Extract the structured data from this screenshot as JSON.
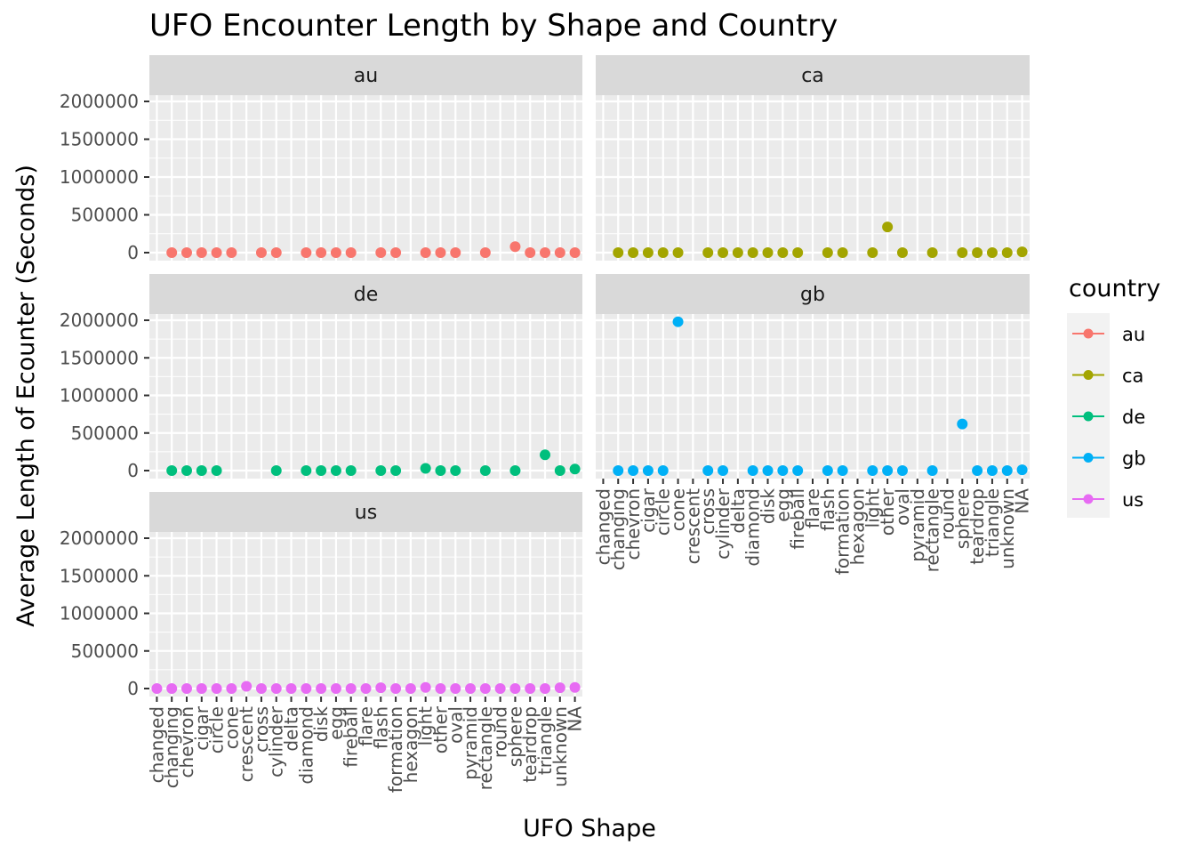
{
  "chart_data": {
    "type": "scatter",
    "title": "UFO Encounter Length by Shape and Country",
    "xlabel": "UFO Shape",
    "ylabel": "Average Length of Ecounter (Seconds)",
    "grid": true,
    "legend_position": "right",
    "legend_title": "country",
    "facet_by": "country",
    "facets": [
      "au",
      "ca",
      "de",
      "gb",
      "us"
    ],
    "categories": [
      "changed",
      "changing",
      "chevron",
      "cigar",
      "circle",
      "cone",
      "crescent",
      "cross",
      "cylinder",
      "delta",
      "diamond",
      "disk",
      "egg",
      "fireball",
      "flare",
      "flash",
      "formation",
      "hexagon",
      "light",
      "other",
      "oval",
      "pyramid",
      "rectangle",
      "round",
      "sphere",
      "teardrop",
      "triangle",
      "unknown",
      "NA"
    ],
    "ylim": [
      0,
      2000000
    ],
    "y_ticks": [
      0,
      500000,
      1000000,
      1500000,
      2000000
    ],
    "y_tick_labels": [
      "0",
      "500000",
      "1000000",
      "1500000",
      "2000000"
    ],
    "series": [
      {
        "name": "au",
        "color": "#F8766D",
        "points": [
          [
            "changing",
            0
          ],
          [
            "chevron",
            0
          ],
          [
            "cigar",
            0
          ],
          [
            "circle",
            0
          ],
          [
            "cone",
            0
          ],
          [
            "cross",
            0
          ],
          [
            "cylinder",
            0
          ],
          [
            "diamond",
            0
          ],
          [
            "disk",
            0
          ],
          [
            "egg",
            0
          ],
          [
            "fireball",
            0
          ],
          [
            "flash",
            0
          ],
          [
            "formation",
            0
          ],
          [
            "light",
            0
          ],
          [
            "other",
            0
          ],
          [
            "oval",
            0
          ],
          [
            "rectangle",
            0
          ],
          [
            "sphere",
            80000
          ],
          [
            "teardrop",
            0
          ],
          [
            "triangle",
            0
          ],
          [
            "unknown",
            0
          ],
          [
            "NA",
            0
          ]
        ]
      },
      {
        "name": "ca",
        "color": "#A3A500",
        "points": [
          [
            "changing",
            0
          ],
          [
            "chevron",
            0
          ],
          [
            "cigar",
            0
          ],
          [
            "circle",
            0
          ],
          [
            "cone",
            0
          ],
          [
            "cross",
            0
          ],
          [
            "cylinder",
            0
          ],
          [
            "delta",
            0
          ],
          [
            "diamond",
            0
          ],
          [
            "disk",
            0
          ],
          [
            "egg",
            0
          ],
          [
            "fireball",
            0
          ],
          [
            "flash",
            0
          ],
          [
            "formation",
            0
          ],
          [
            "light",
            0
          ],
          [
            "other",
            340000
          ],
          [
            "oval",
            0
          ],
          [
            "rectangle",
            0
          ],
          [
            "sphere",
            0
          ],
          [
            "teardrop",
            0
          ],
          [
            "triangle",
            0
          ],
          [
            "unknown",
            0
          ],
          [
            "NA",
            10000
          ]
        ]
      },
      {
        "name": "de",
        "color": "#00BF7D",
        "points": [
          [
            "changing",
            0
          ],
          [
            "chevron",
            0
          ],
          [
            "cigar",
            0
          ],
          [
            "circle",
            0
          ],
          [
            "cylinder",
            0
          ],
          [
            "diamond",
            0
          ],
          [
            "disk",
            0
          ],
          [
            "egg",
            0
          ],
          [
            "fireball",
            0
          ],
          [
            "flash",
            0
          ],
          [
            "formation",
            0
          ],
          [
            "light",
            30000
          ],
          [
            "other",
            0
          ],
          [
            "oval",
            0
          ],
          [
            "rectangle",
            0
          ],
          [
            "sphere",
            0
          ],
          [
            "triangle",
            210000
          ],
          [
            "unknown",
            0
          ],
          [
            "NA",
            20000
          ]
        ]
      },
      {
        "name": "gb",
        "color": "#00B0F6",
        "points": [
          [
            "changing",
            0
          ],
          [
            "chevron",
            0
          ],
          [
            "cigar",
            0
          ],
          [
            "circle",
            0
          ],
          [
            "cone",
            1980000
          ],
          [
            "cross",
            0
          ],
          [
            "cylinder",
            0
          ],
          [
            "diamond",
            0
          ],
          [
            "disk",
            0
          ],
          [
            "egg",
            0
          ],
          [
            "fireball",
            0
          ],
          [
            "flash",
            0
          ],
          [
            "formation",
            0
          ],
          [
            "light",
            0
          ],
          [
            "other",
            0
          ],
          [
            "oval",
            0
          ],
          [
            "rectangle",
            0
          ],
          [
            "sphere",
            620000
          ],
          [
            "teardrop",
            0
          ],
          [
            "triangle",
            0
          ],
          [
            "unknown",
            0
          ],
          [
            "NA",
            10000
          ]
        ]
      },
      {
        "name": "us",
        "color": "#E76BF3",
        "points": [
          [
            "changed",
            0
          ],
          [
            "changing",
            0
          ],
          [
            "chevron",
            0
          ],
          [
            "cigar",
            0
          ],
          [
            "circle",
            0
          ],
          [
            "cone",
            0
          ],
          [
            "crescent",
            30000
          ],
          [
            "cross",
            0
          ],
          [
            "cylinder",
            0
          ],
          [
            "delta",
            0
          ],
          [
            "diamond",
            0
          ],
          [
            "disk",
            0
          ],
          [
            "egg",
            0
          ],
          [
            "fireball",
            0
          ],
          [
            "flare",
            0
          ],
          [
            "flash",
            10000
          ],
          [
            "formation",
            0
          ],
          [
            "hexagon",
            0
          ],
          [
            "light",
            15000
          ],
          [
            "other",
            0
          ],
          [
            "oval",
            0
          ],
          [
            "pyramid",
            0
          ],
          [
            "rectangle",
            0
          ],
          [
            "round",
            0
          ],
          [
            "sphere",
            0
          ],
          [
            "teardrop",
            0
          ],
          [
            "triangle",
            0
          ],
          [
            "unknown",
            10000
          ],
          [
            "NA",
            15000
          ]
        ]
      }
    ]
  }
}
